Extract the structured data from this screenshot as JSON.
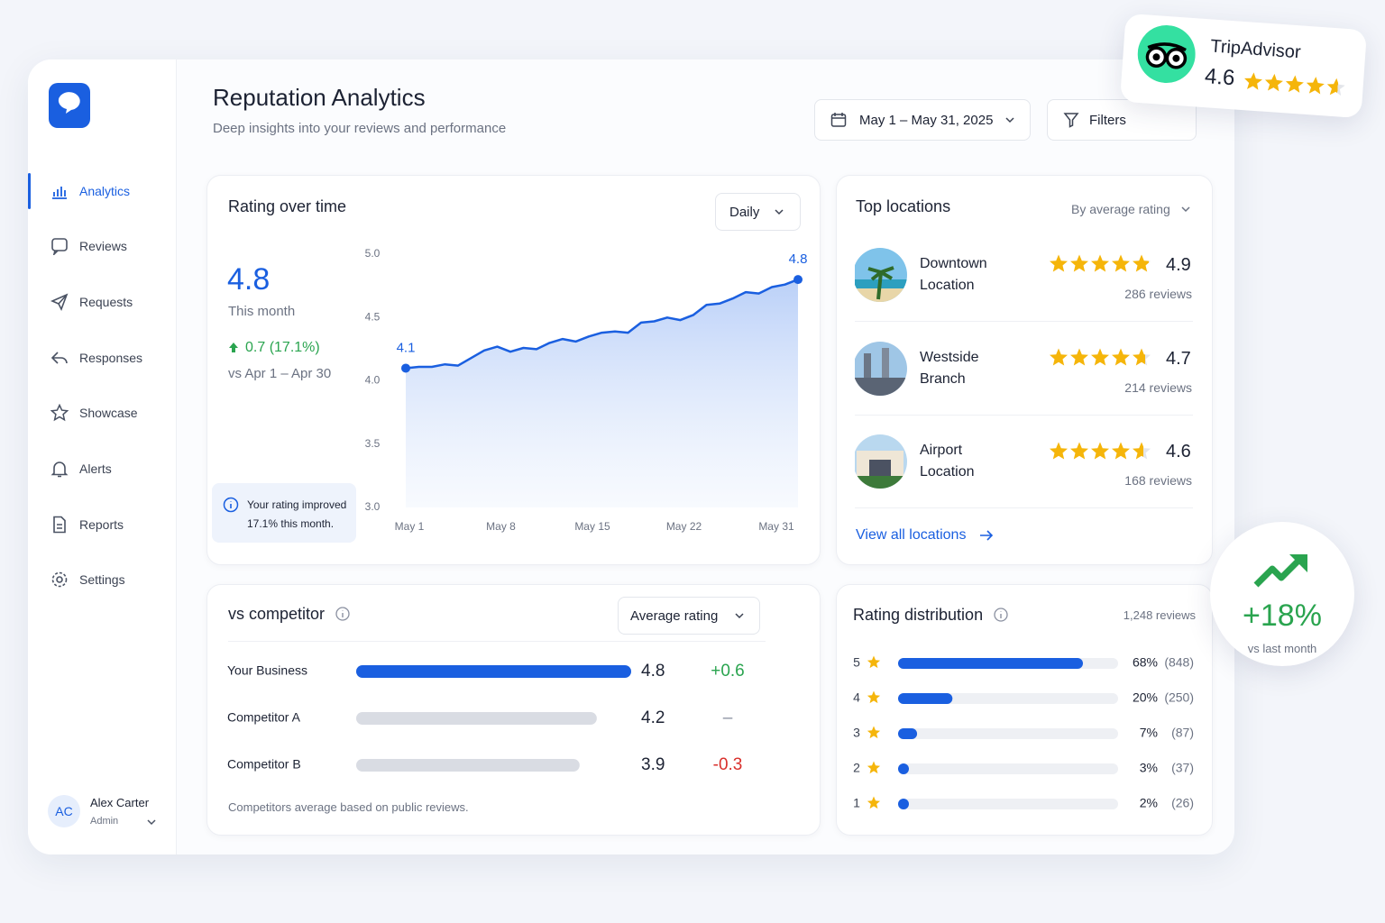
{
  "sidebar": {
    "nav": [
      "Analytics",
      "Reviews",
      "Requests",
      "Responses",
      "Showcase",
      "Alerts",
      "Reports",
      "Settings"
    ],
    "user": {
      "initials": "AC",
      "name": "Alex Carter",
      "role": "Admin"
    }
  },
  "header": {
    "title": "Reputation Analytics",
    "subtitle": "Deep insights into your reviews and performance",
    "date_range": "May 1 – May 31, 2025",
    "filters": "Filters"
  },
  "badge_tripadvisor": {
    "name": "TripAdvisor",
    "rating": 4.6
  },
  "rating_over_time": {
    "title": "Rating over time",
    "period": "Daily",
    "current": 4.8,
    "current_label": "This month",
    "change": "0.7 (17.1%)",
    "compare": "vs Apr 1 – Apr 30",
    "note": "Your rating improved 17.1% this month.",
    "chart": {
      "type": "line",
      "color": "#1a5fe0",
      "categories": [
        "May 1",
        null,
        null,
        null,
        null,
        null,
        null,
        "May 8",
        null,
        null,
        null,
        null,
        null,
        null,
        "May 15",
        null,
        null,
        null,
        null,
        null,
        null,
        "May 22",
        null,
        null,
        null,
        null,
        null,
        null,
        null,
        null,
        "May 31"
      ],
      "values": [
        4.1,
        4.11,
        4.11,
        4.13,
        4.12,
        4.18,
        4.24,
        4.27,
        4.23,
        4.26,
        4.25,
        4.3,
        4.33,
        4.31,
        4.35,
        4.38,
        4.39,
        4.38,
        4.46,
        4.47,
        4.5,
        4.48,
        4.52,
        4.6,
        4.61,
        4.65,
        4.7,
        4.69,
        4.74,
        4.76,
        4.8
      ],
      "ylim": [
        3.0,
        5.0
      ],
      "yticks": [
        {
          "value": 3.0,
          "label": "3.0"
        },
        3.5,
        {
          "value": 4.0,
          "label": "4.0"
        },
        4.5,
        {
          "value": 5.0,
          "label": "5.0"
        }
      ],
      "grid": false
    }
  },
  "top_locations": {
    "title": "Top locations",
    "sort": "By average rating",
    "items": [
      {
        "name": "Downtown Location",
        "rating": 4.9,
        "reviews": "286 reviews"
      },
      {
        "name": "Westside Branch",
        "rating": 4.7,
        "reviews": "214 reviews"
      },
      {
        "name": "Airport Location",
        "rating": 4.6,
        "reviews": "168 reviews"
      }
    ],
    "view_all": "View all locations"
  },
  "competitor": {
    "title": "vs competitor",
    "metric": "Average rating",
    "chart": {
      "type": "bar",
      "categories": [
        "Your Business",
        "Competitor A",
        "Competitor B"
      ],
      "values": [
        4.8,
        4.2,
        3.9
      ],
      "changes": [
        "+0.6",
        "–",
        "-0.3"
      ],
      "colors": [
        "#1a5fe0",
        "#d9dce3",
        "#d9dce3"
      ]
    },
    "footnote": "Competitors average based on public reviews."
  },
  "distribution": {
    "title": "Rating distribution",
    "total": "1,248 reviews",
    "chart": {
      "type": "bar",
      "color": "#1a5fe0",
      "categories": [
        "5",
        "4",
        "3",
        "2",
        "1"
      ],
      "values": [
        68,
        20,
        7,
        3,
        2
      ],
      "value_labels": [
        "68%",
        "20%",
        "7%",
        "3%",
        "2%"
      ],
      "count_labels": [
        "(848)",
        "(250)",
        "(87)",
        "(37)",
        "(26)"
      ]
    }
  },
  "growth_badge": {
    "value": "+18%",
    "label": "vs last month"
  }
}
